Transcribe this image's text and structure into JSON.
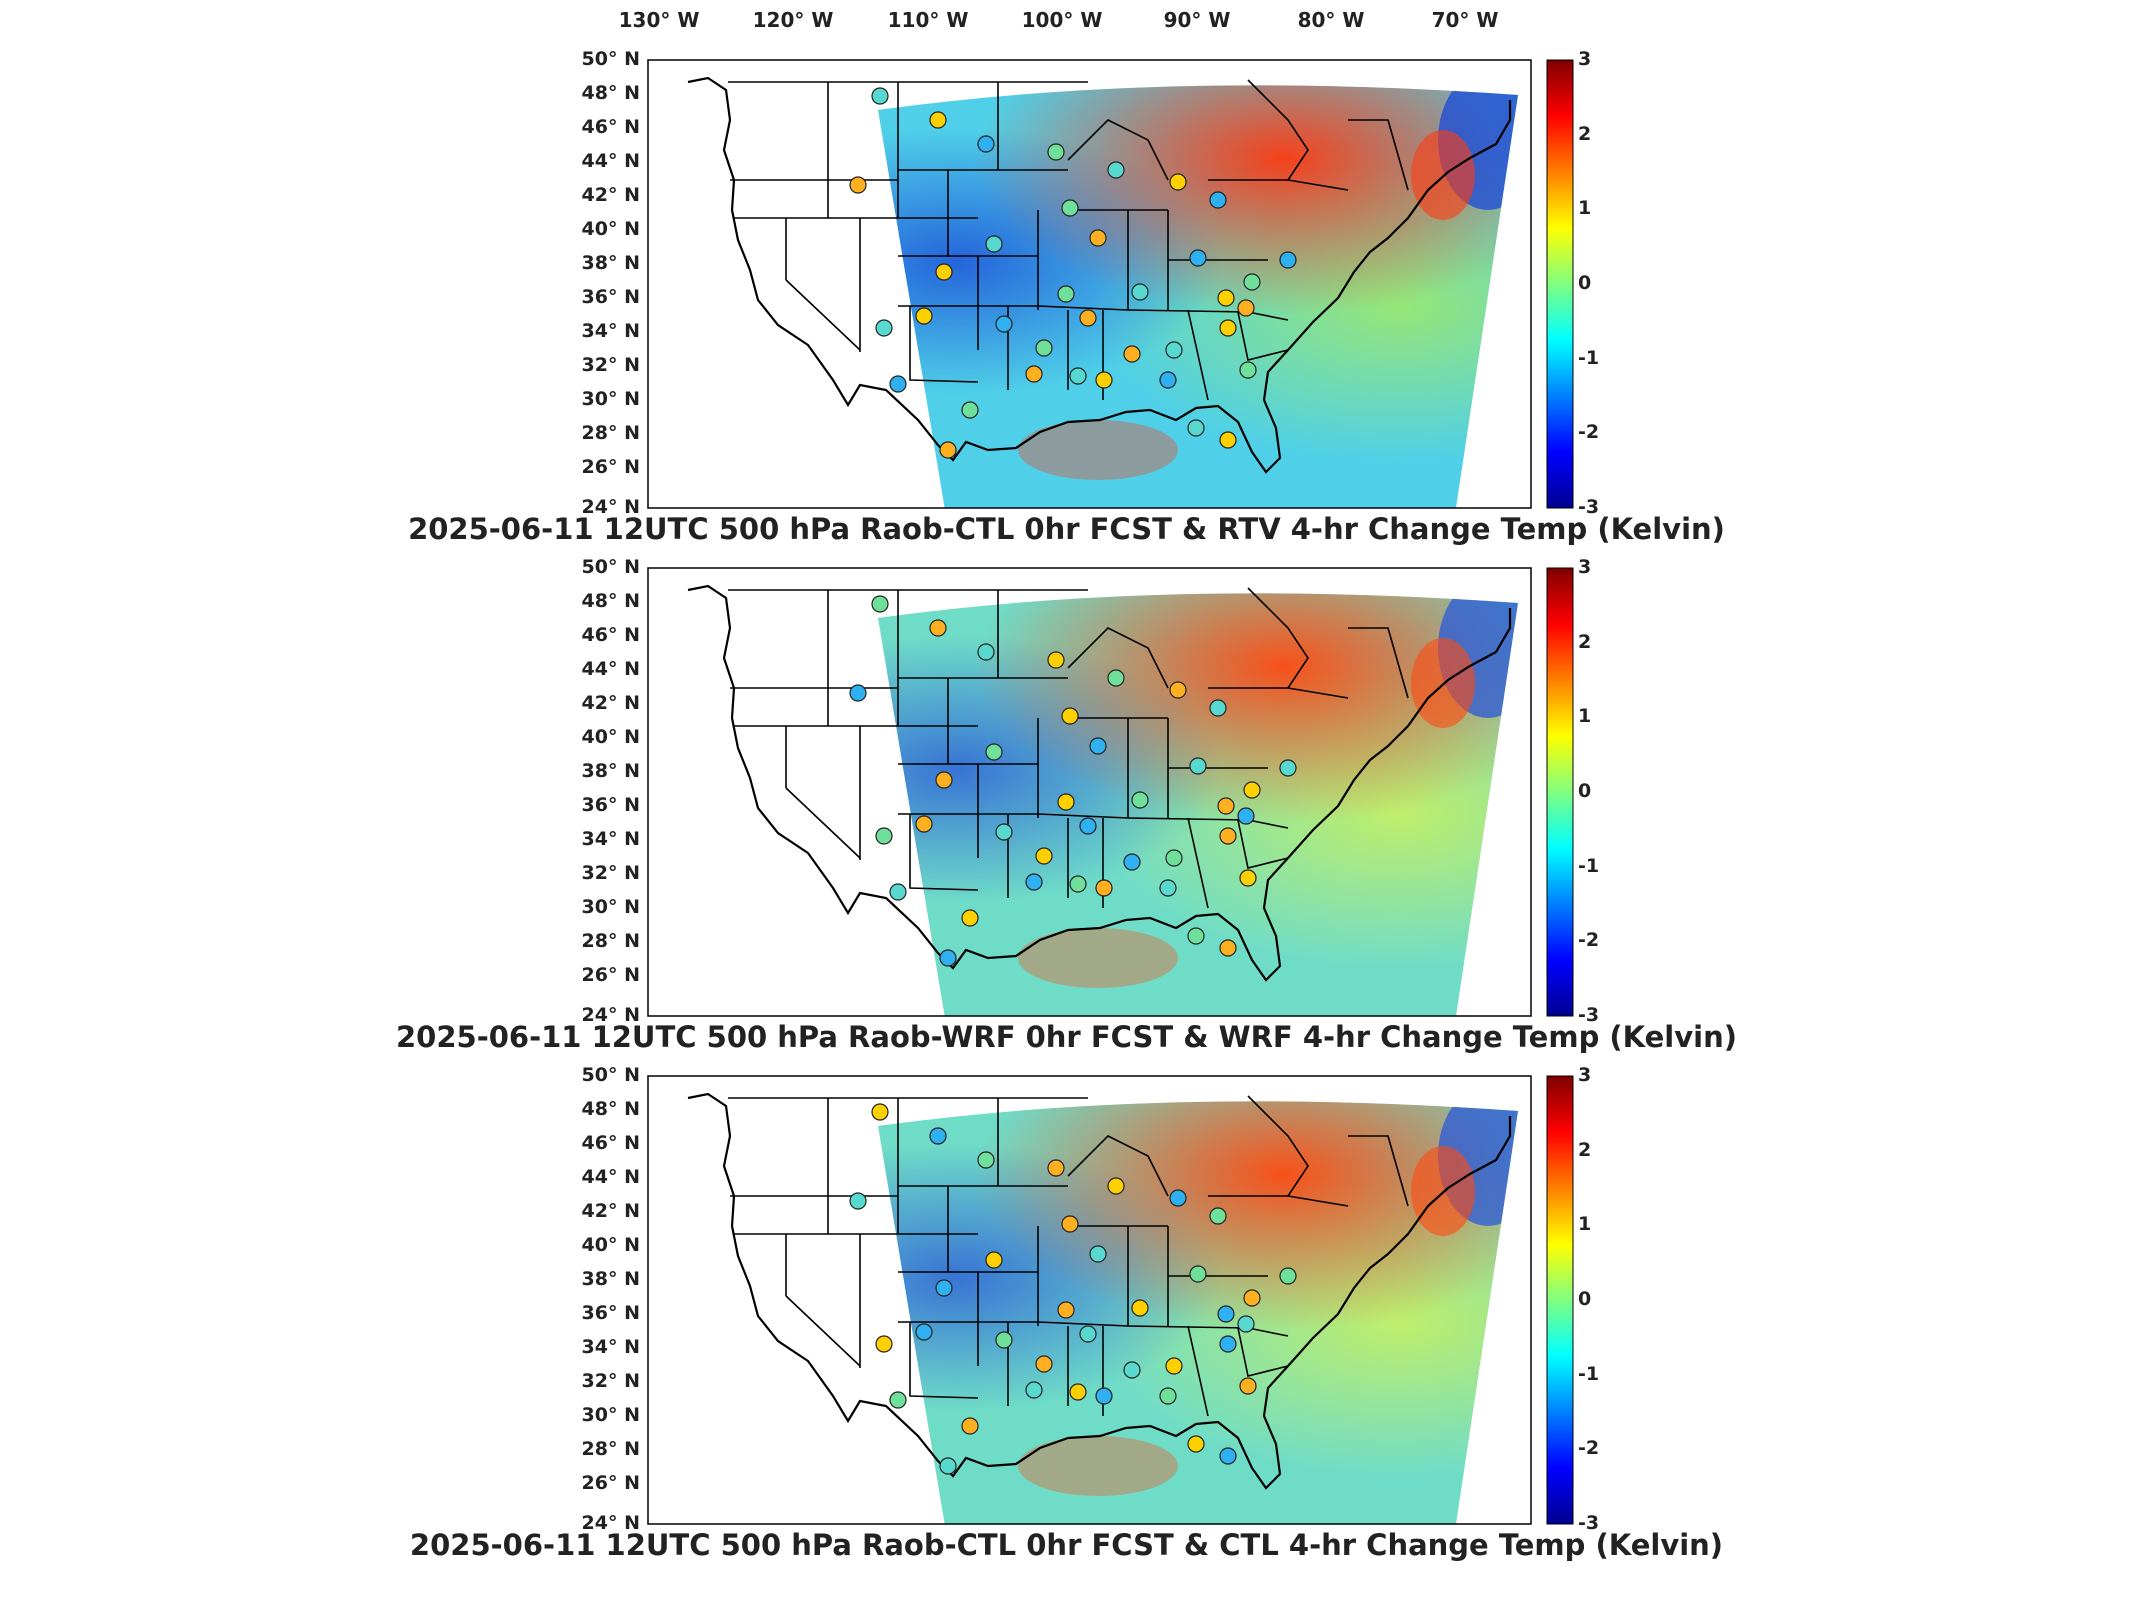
{
  "longitude_labels": [
    "130° W",
    "120° W",
    "110° W",
    "100° W",
    "90° W",
    "80° W",
    "70° W"
  ],
  "latitude_labels": [
    "50° N",
    "48° N",
    "46° N",
    "44° N",
    "42° N",
    "40° N",
    "38° N",
    "36° N",
    "34° N",
    "32° N",
    "30° N",
    "28° N",
    "26° N",
    "24° N"
  ],
  "colorbar": {
    "ticks": [
      "3",
      "2",
      "1",
      "0",
      "-1",
      "-2",
      "-3"
    ],
    "colors": [
      "#7f0000",
      "#ff0000",
      "#ff8000",
      "#ffff00",
      "#80ff80",
      "#00ffff",
      "#0080ff",
      "#0000ff",
      "#00008f"
    ]
  },
  "panels": [
    {
      "title": "2025-06-11 12UTC 500 hPa Raob-CTL 0hr FCST & RTV 4-hr Change Temp (Kelvin)",
      "field_colors": {
        "base": "#4fd0e8",
        "warm": "#ff3a10",
        "cool": "#1a4ad8",
        "mild": "#9fe86a"
      }
    },
    {
      "title": "2025-06-11 12UTC 500 hPa Raob-WRF 0hr FCST & WRF 4-hr Change Temp (Kelvin)",
      "field_colors": {
        "base": "#6fdcc8",
        "warm": "#ff4a10",
        "cool": "#2a5ad8",
        "mild": "#c8f060"
      }
    },
    {
      "title": "2025-06-11 12UTC 500 hPa Raob-CTL 0hr FCST & CTL 4-hr Change Temp (Kelvin)",
      "field_colors": {
        "base": "#6fdcc8",
        "warm": "#ff4a10",
        "cool": "#2a5ad8",
        "mild": "#c8f060"
      }
    }
  ],
  "station_colors": [
    "#58d9d0",
    "#6fe09a",
    "#ffd000",
    "#ffb020",
    "#2fb0f0"
  ]
}
